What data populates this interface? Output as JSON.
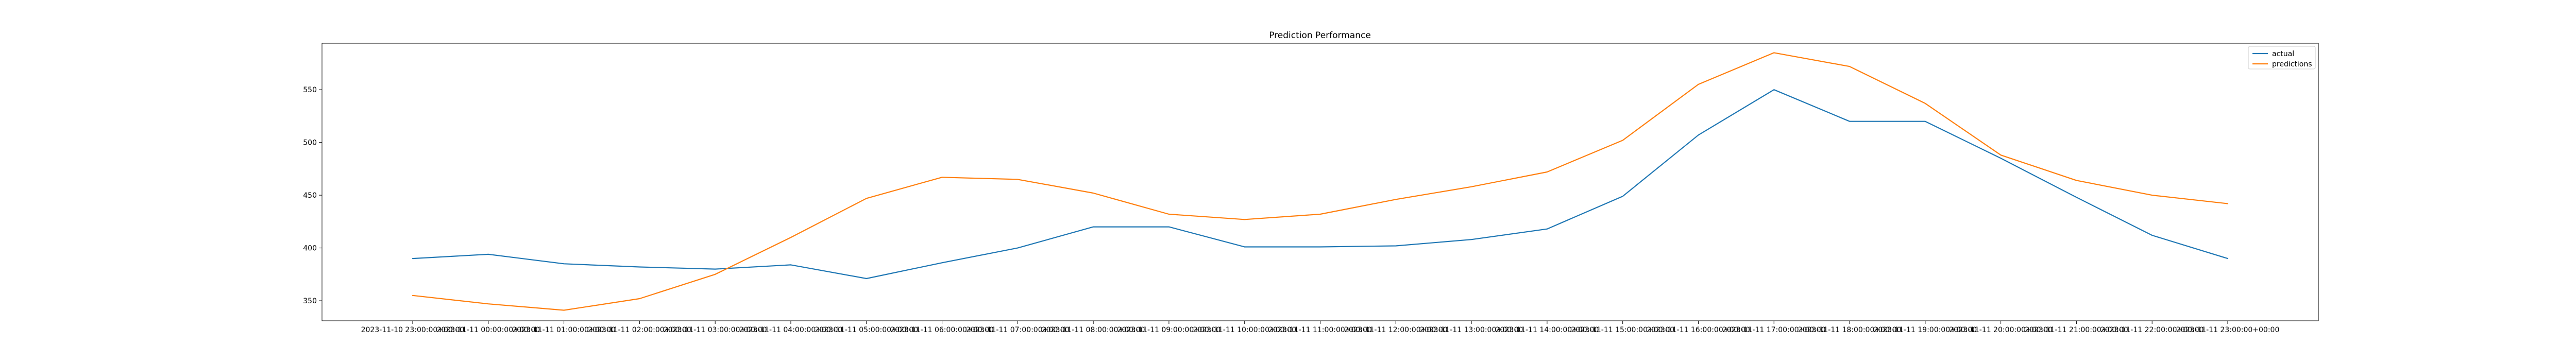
{
  "chart_data": {
    "type": "line",
    "title": "Prediction Performance",
    "xlabel": "",
    "ylabel": "",
    "x": [
      "2023-11-10 23:00:00+00:00",
      "2023-11-11 00:00:00+00:00",
      "2023-11-11 01:00:00+00:00",
      "2023-11-11 02:00:00+00:00",
      "2023-11-11 03:00:00+00:00",
      "2023-11-11 04:00:00+00:00",
      "2023-11-11 05:00:00+00:00",
      "2023-11-11 06:00:00+00:00",
      "2023-11-11 07:00:00+00:00",
      "2023-11-11 08:00:00+00:00",
      "2023-11-11 09:00:00+00:00",
      "2023-11-11 10:00:00+00:00",
      "2023-11-11 11:00:00+00:00",
      "2023-11-11 12:00:00+00:00",
      "2023-11-11 13:00:00+00:00",
      "2023-11-11 14:00:00+00:00",
      "2023-11-11 15:00:00+00:00",
      "2023-11-11 16:00:00+00:00",
      "2023-11-11 17:00:00+00:00",
      "2023-11-11 18:00:00+00:00",
      "2023-11-11 19:00:00+00:00",
      "2023-11-11 20:00:00+00:00",
      "2023-11-11 21:00:00+00:00",
      "2023-11-11 22:00:00+00:00",
      "2023-11-11 23:00:00+00:00"
    ],
    "series": [
      {
        "name": "actual",
        "color": "#1f77b4",
        "values": [
          390,
          394,
          385,
          382,
          380,
          384,
          371,
          386,
          400,
          420,
          420,
          401,
          401,
          402,
          408,
          418,
          449,
          507,
          550,
          520,
          520,
          485,
          448,
          412,
          390
        ]
      },
      {
        "name": "predictions",
        "color": "#ff7f0e",
        "values": [
          355,
          347,
          341,
          352,
          375,
          410,
          447,
          467,
          465,
          452,
          432,
          427,
          432,
          446,
          458,
          472,
          502,
          555,
          585,
          572,
          537,
          488,
          464,
          450,
          442
        ]
      }
    ],
    "yticks": [
      350,
      400,
      450,
      500,
      550
    ],
    "ylim": [
      331,
      594
    ],
    "grid": false,
    "legend": "top-right"
  }
}
